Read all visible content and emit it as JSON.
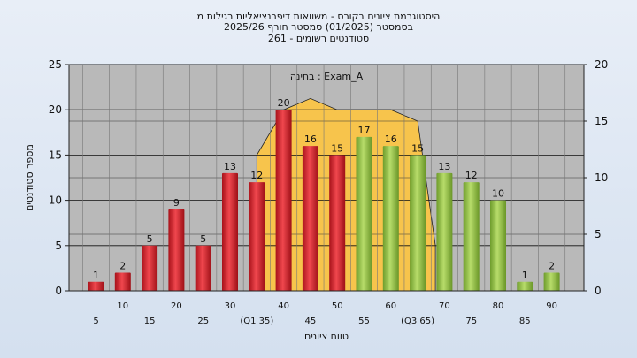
{
  "chart_data": {
    "type": "bar",
    "title_lines": [
      "היסטוגרמת ציונים בקורס - משוואות דיפרנציאליות רגילות מ",
      "בסמסטר   (01/2025)  סמסטר חורף 2025/26",
      "סטודנטים רשומים - 261"
    ],
    "annotation": "בחינה : Exam_A",
    "xlabel": "טווח ציונים",
    "ylabel": "מספר סטודנטים",
    "ylim": [
      0,
      25
    ],
    "y_ticks": [
      0,
      5,
      10,
      15,
      20,
      25
    ],
    "y2lim": [
      0,
      20
    ],
    "y2_ticks": [
      0,
      5,
      10,
      15,
      20
    ],
    "grid": true,
    "categories": [
      "5",
      "10",
      "15",
      "20",
      "25",
      "30",
      "35",
      "40",
      "45",
      "50",
      "55",
      "60",
      "65",
      "70",
      "75",
      "80",
      "85",
      "90"
    ],
    "x_tick_labels": [
      "5",
      "10",
      "15",
      "20",
      "25",
      "30",
      "(Q1 35)",
      "40",
      "45",
      "50",
      "55",
      "60",
      "(Q3 65)",
      "70",
      "75",
      "80",
      "85",
      "90"
    ],
    "values": [
      1,
      2,
      5,
      9,
      5,
      13,
      12,
      20,
      16,
      15,
      17,
      16,
      15,
      13,
      12,
      10,
      1,
      2
    ],
    "bar_colors": [
      "red",
      "red",
      "red",
      "red",
      "red",
      "red",
      "red",
      "red",
      "red",
      "red",
      "green",
      "green",
      "green",
      "green",
      "green",
      "green",
      "green",
      "green"
    ],
    "highlight_area": {
      "x": [
        "35",
        "40",
        "45",
        "50",
        "55",
        "60",
        "65"
      ],
      "y2_values": [
        12,
        16,
        17,
        16,
        16,
        16,
        15
      ],
      "color": "#f7c44c"
    },
    "colors": {
      "red": "#d8262e",
      "green": "#94c347",
      "plot_bg": "#b9b9b9",
      "band_bg": "#f7c44c"
    }
  }
}
